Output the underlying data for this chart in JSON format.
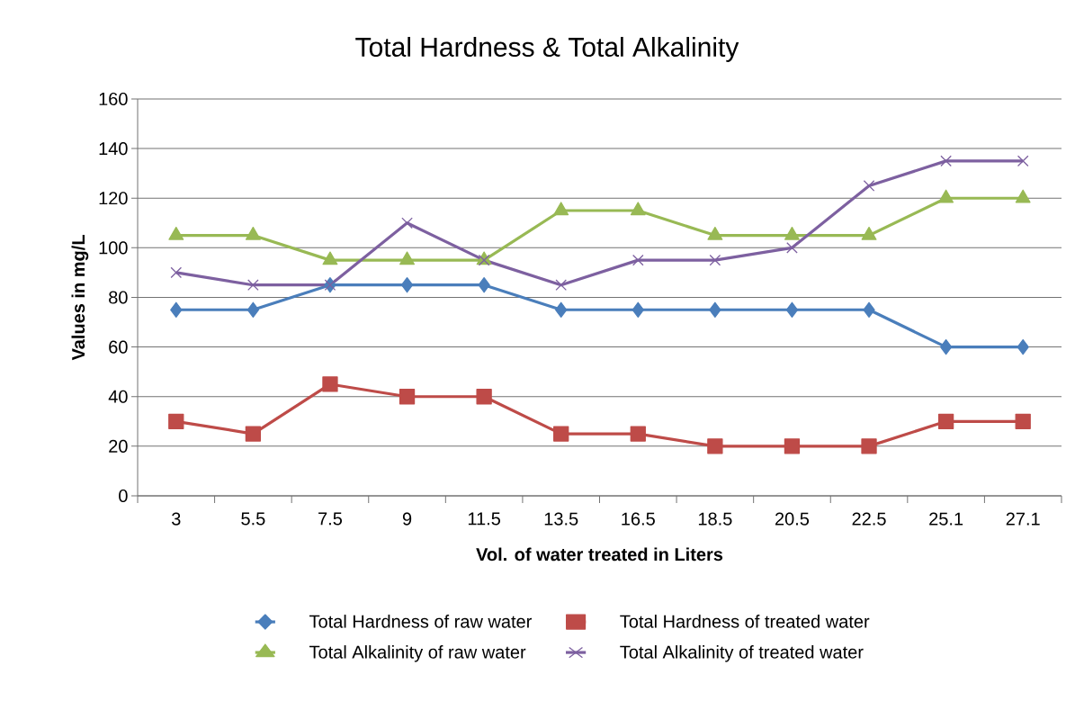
{
  "chart_data": {
    "type": "line",
    "title": "Total Hardness & Total Alkalinity",
    "xlabel": "Vol. of water treated in Liters",
    "ylabel": "Values in mg/L",
    "categories": [
      "3",
      "5.5",
      "7.5",
      "9",
      "11.5",
      "13.5",
      "16.5",
      "18.5",
      "20.5",
      "22.5",
      "25.1",
      "27.1"
    ],
    "series": [
      {
        "name": "Total Hardness of raw water",
        "color": "#4a7ebb",
        "marker": "diamond",
        "values": [
          75,
          75,
          85,
          85,
          85,
          75,
          75,
          75,
          75,
          75,
          60,
          60
        ]
      },
      {
        "name": "Total Hardness of treated water",
        "color": "#be4b48",
        "marker": "square",
        "values": [
          30,
          25,
          45,
          40,
          40,
          25,
          25,
          20,
          20,
          20,
          30,
          30
        ]
      },
      {
        "name": "Total Alkalinity of raw water",
        "color": "#98b954",
        "marker": "triangle",
        "values": [
          105,
          105,
          95,
          95,
          95,
          115,
          115,
          105,
          105,
          105,
          120,
          120
        ]
      },
      {
        "name": "Total Alkalinity of treated water",
        "color": "#7d60a0",
        "marker": "cross",
        "values": [
          90,
          85,
          85,
          110,
          95,
          85,
          95,
          95,
          100,
          125,
          135,
          135
        ]
      }
    ],
    "ylim": [
      0,
      160
    ],
    "yticks": [
      0,
      20,
      40,
      60,
      80,
      100,
      120,
      140,
      160
    ],
    "grid": "y",
    "legend": "bottom"
  }
}
